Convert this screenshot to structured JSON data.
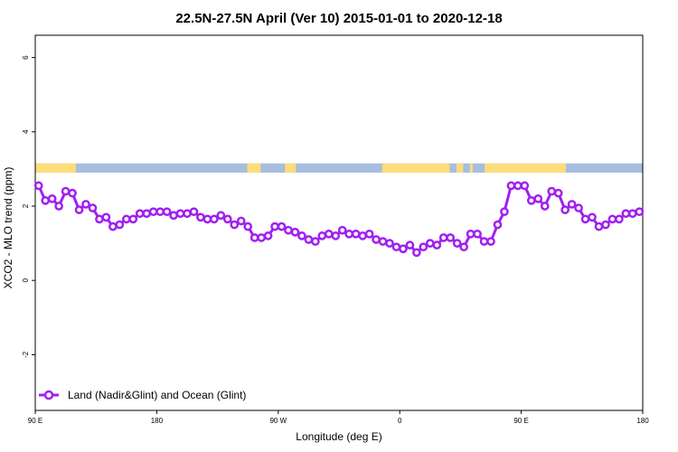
{
  "chart_data": {
    "type": "line",
    "title": "22.5N-27.5N April (Ver 10)   2015-01-01 to 2020-12-18",
    "xlabel": "Longitude (deg E)",
    "ylabel": "XCO2 - MLO trend (ppm)",
    "xlim": [
      90,
      540
    ],
    "ylim": [
      -3.5,
      6.6
    ],
    "x_ticks": [
      {
        "value": 90,
        "label": "90 E"
      },
      {
        "value": 180,
        "label": "180"
      },
      {
        "value": 270,
        "label": "90 W"
      },
      {
        "value": 360,
        "label": "0"
      },
      {
        "value": 450,
        "label": "90 E"
      },
      {
        "value": 540,
        "label": "180"
      }
    ],
    "y_ticks": [
      {
        "value": -2,
        "label": "-2"
      },
      {
        "value": 0,
        "label": "0"
      },
      {
        "value": 2,
        "label": "2"
      },
      {
        "value": 4,
        "label": "4"
      },
      {
        "value": 6,
        "label": "6"
      }
    ],
    "grid": false,
    "legend_position": "bottom-left",
    "series": [
      {
        "name": "Land (Nadir&Glint) and Ocean (Glint)",
        "color": "#a020f0",
        "x": [
          92.5,
          97.5,
          102.5,
          107.5,
          112.5,
          117.5,
          122.5,
          127.5,
          132.5,
          137.5,
          142.5,
          147.5,
          152.5,
          157.5,
          162.5,
          167.5,
          172.5,
          177.5,
          182.5,
          187.5,
          192.5,
          197.5,
          202.5,
          207.5,
          212.5,
          217.5,
          222.5,
          227.5,
          232.5,
          237.5,
          242.5,
          247.5,
          252.5,
          257.5,
          262.5,
          267.5,
          272.5,
          277.5,
          282.5,
          287.5,
          292.5,
          297.5,
          302.5,
          307.5,
          312.5,
          317.5,
          322.5,
          327.5,
          332.5,
          337.5,
          342.5,
          347.5,
          352.5,
          357.5,
          362.5,
          367.5,
          372.5,
          377.5,
          382.5,
          387.5,
          392.5,
          397.5,
          402.5,
          407.5,
          412.5,
          417.5,
          422.5,
          427.5,
          432.5,
          437.5,
          442.5,
          447.5,
          452.5,
          457.5,
          462.5,
          467.5,
          472.5,
          477.5,
          482.5,
          487.5,
          492.5,
          497.5,
          502.5,
          507.5,
          512.5,
          517.5,
          522.5,
          527.5,
          532.5,
          537.5
        ],
        "y": [
          2.55,
          2.15,
          2.2,
          2.0,
          2.4,
          2.35,
          1.9,
          2.05,
          1.95,
          1.65,
          1.7,
          1.45,
          1.5,
          1.65,
          1.65,
          1.8,
          1.8,
          1.85,
          1.85,
          1.85,
          1.75,
          1.8,
          1.8,
          1.85,
          1.7,
          1.65,
          1.65,
          1.75,
          1.65,
          1.5,
          1.6,
          1.45,
          1.15,
          1.15,
          1.2,
          1.45,
          1.45,
          1.35,
          1.3,
          1.2,
          1.1,
          1.05,
          1.2,
          1.25,
          1.2,
          1.35,
          1.25,
          1.25,
          1.2,
          1.25,
          1.1,
          1.05,
          1.0,
          0.9,
          0.85,
          0.95,
          0.75,
          0.9,
          1.0,
          0.95,
          1.15,
          1.15,
          1.0,
          0.9,
          1.25,
          1.25,
          1.05,
          1.05,
          1.5,
          1.85,
          2.55,
          2.55,
          2.55,
          2.15,
          2.2,
          2.0,
          2.4,
          2.35,
          1.9,
          2.05,
          1.95,
          1.65,
          1.7,
          1.45,
          1.5,
          1.65,
          1.65,
          1.8,
          1.8,
          1.85
        ]
      }
    ],
    "land_ocean_strip": {
      "y_range": [
        2.9,
        3.15
      ],
      "ocean_color": "#a7bedf",
      "land_color": "#fddc7a",
      "land_segments": [
        [
          90,
          120
        ],
        [
          247,
          257
        ],
        [
          275,
          280
        ],
        [
          277,
          283
        ],
        [
          347,
          397
        ],
        [
          402,
          407
        ],
        [
          412,
          414
        ],
        [
          423,
          458
        ],
        [
          458,
          483
        ]
      ]
    }
  }
}
